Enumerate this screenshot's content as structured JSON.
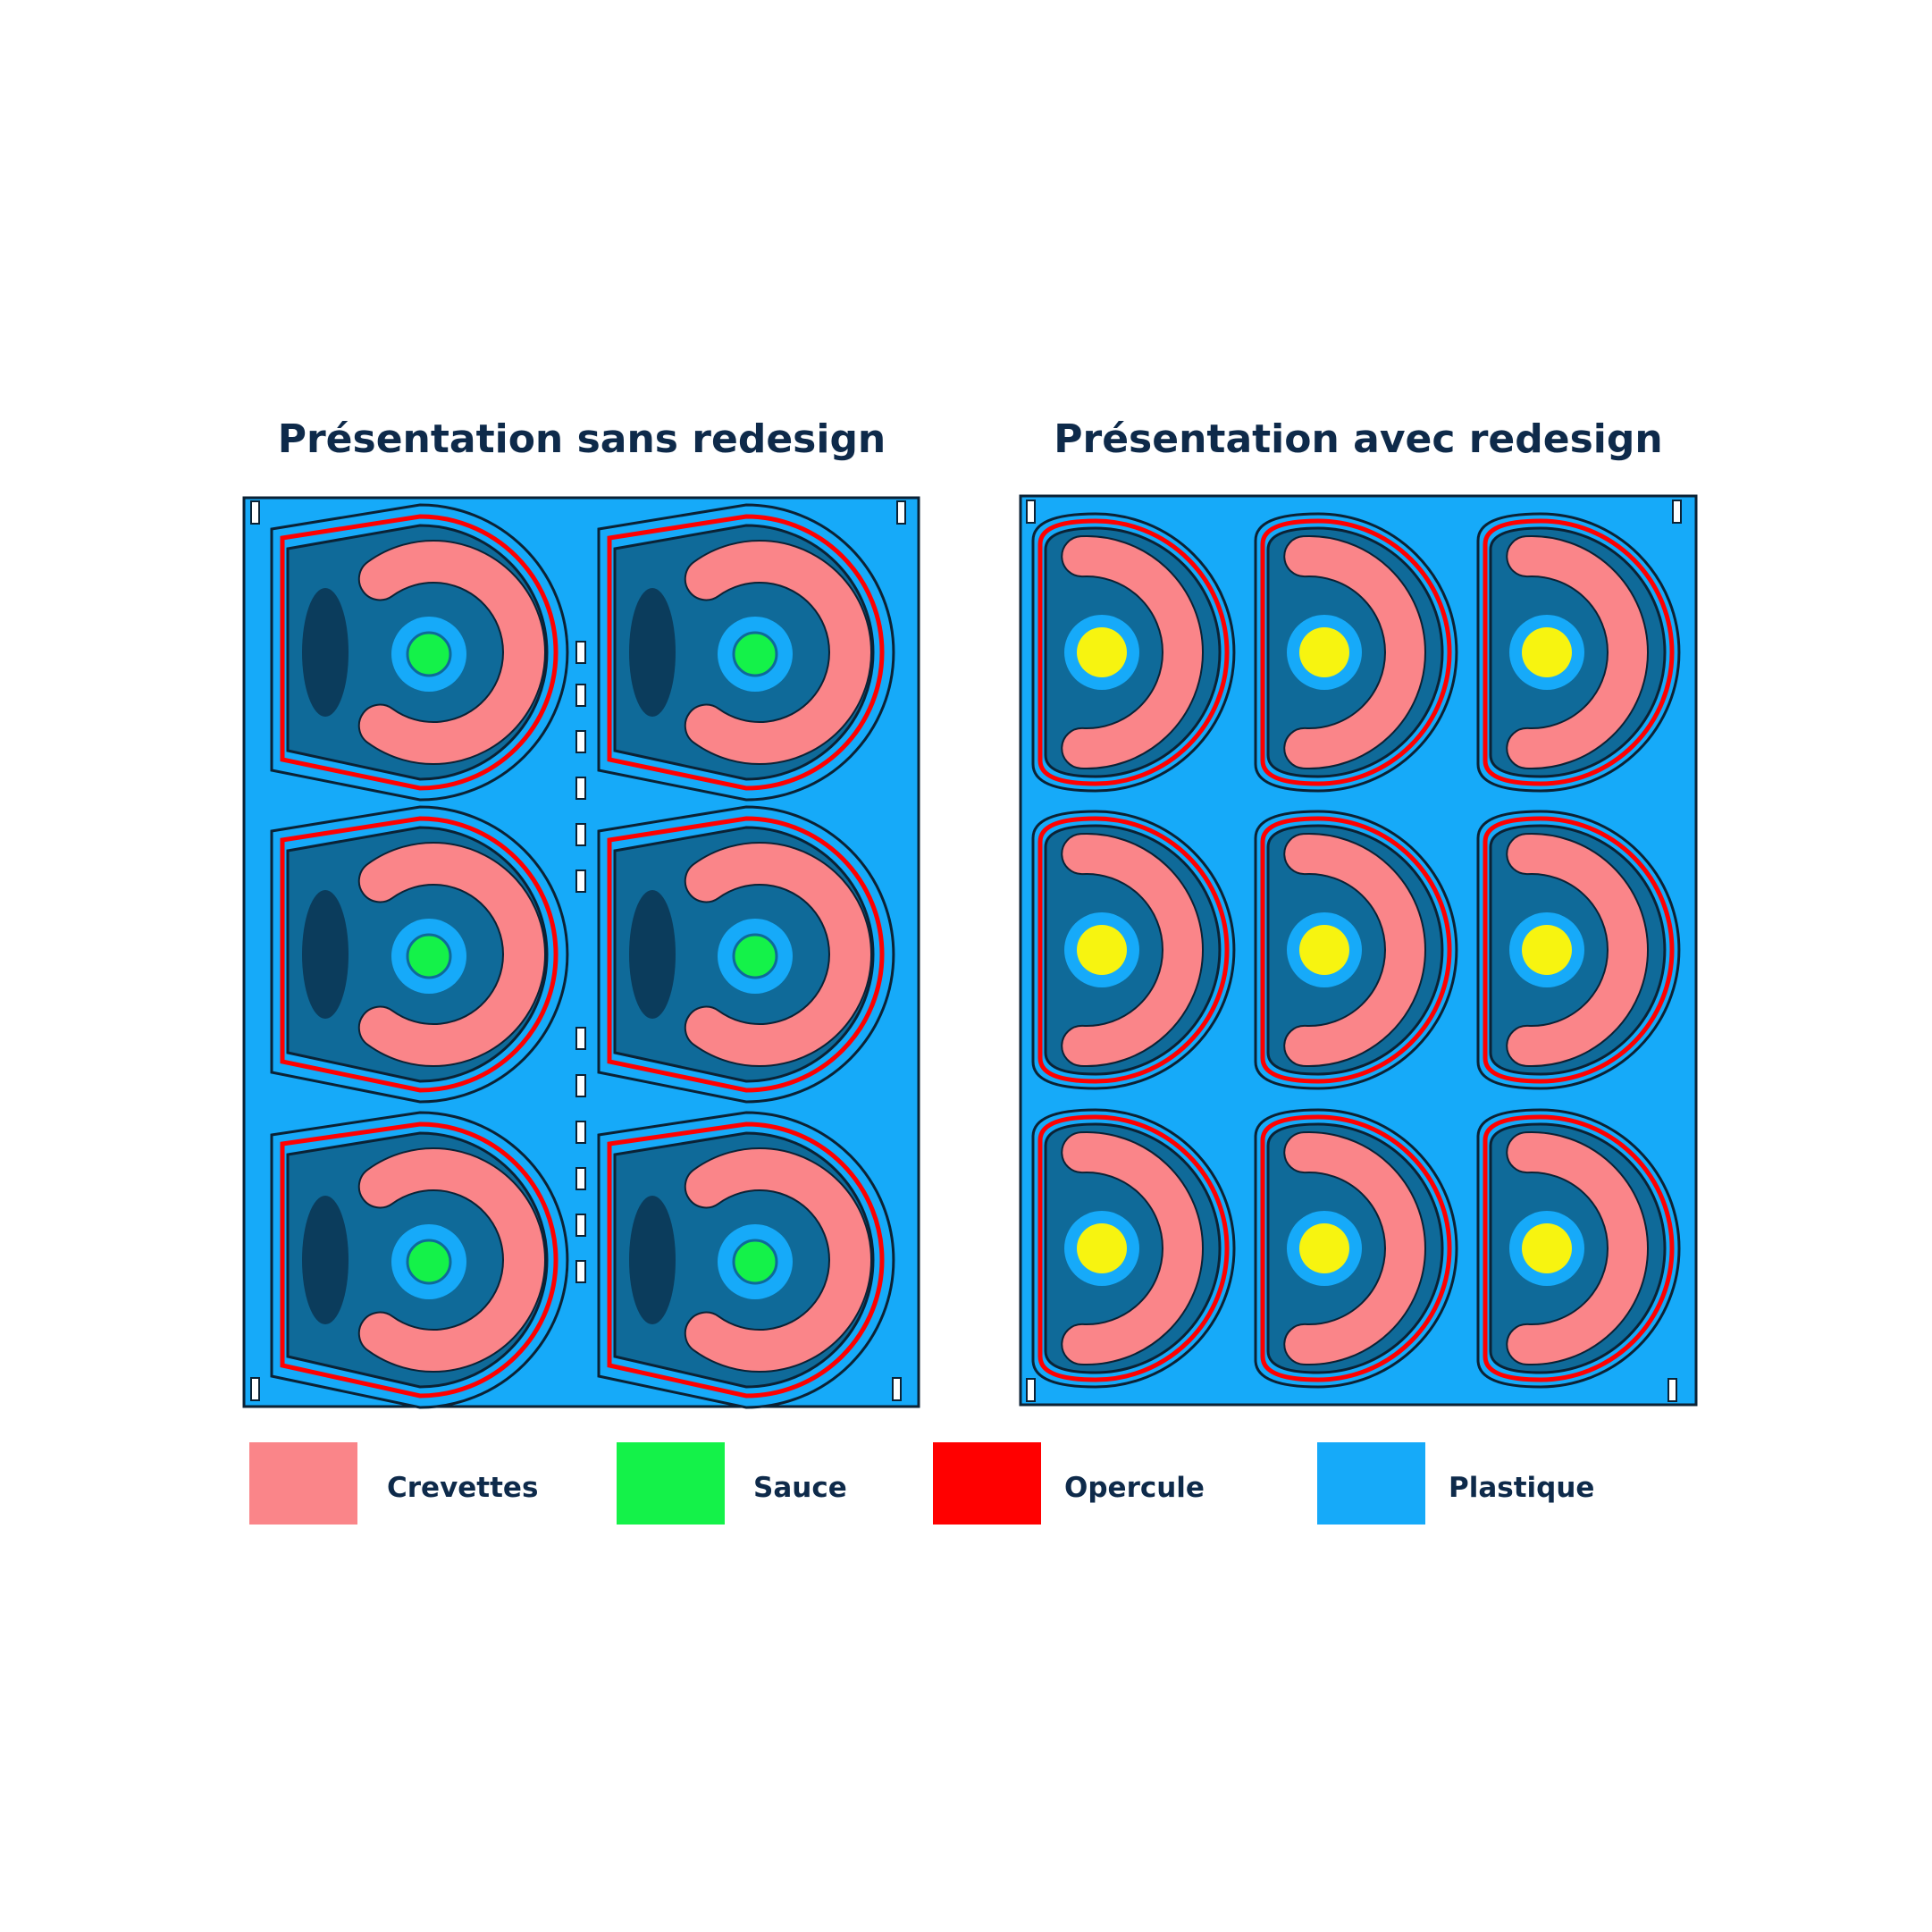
{
  "titles": {
    "left": "Présentation sans redesign",
    "right": "Présentation avec redesign"
  },
  "legend": [
    {
      "label": "Crevettes",
      "color": "#fa8589"
    },
    {
      "label": "Sauce",
      "color": "#14f249"
    },
    {
      "label": "Opercule",
      "color": "#ff0000"
    },
    {
      "label": "Plastique",
      "color": "#16aaf9"
    }
  ],
  "colors": {
    "plastique": "#16aaf9",
    "cavity_dark": "#0f6a99",
    "cavity_darker": "#0b3c5c",
    "outline": "#0b2235",
    "crevettes": "#fa8589",
    "sauce_left": "#14f249",
    "sauce_right": "#f7f410",
    "opercule": "#ff0000",
    "cup_ring": "#16aaf9"
  },
  "layouts": {
    "left": {
      "columns": 2,
      "rows": 3,
      "trays": 6
    },
    "right": {
      "columns": 3,
      "rows": 3,
      "trays": 9
    }
  }
}
